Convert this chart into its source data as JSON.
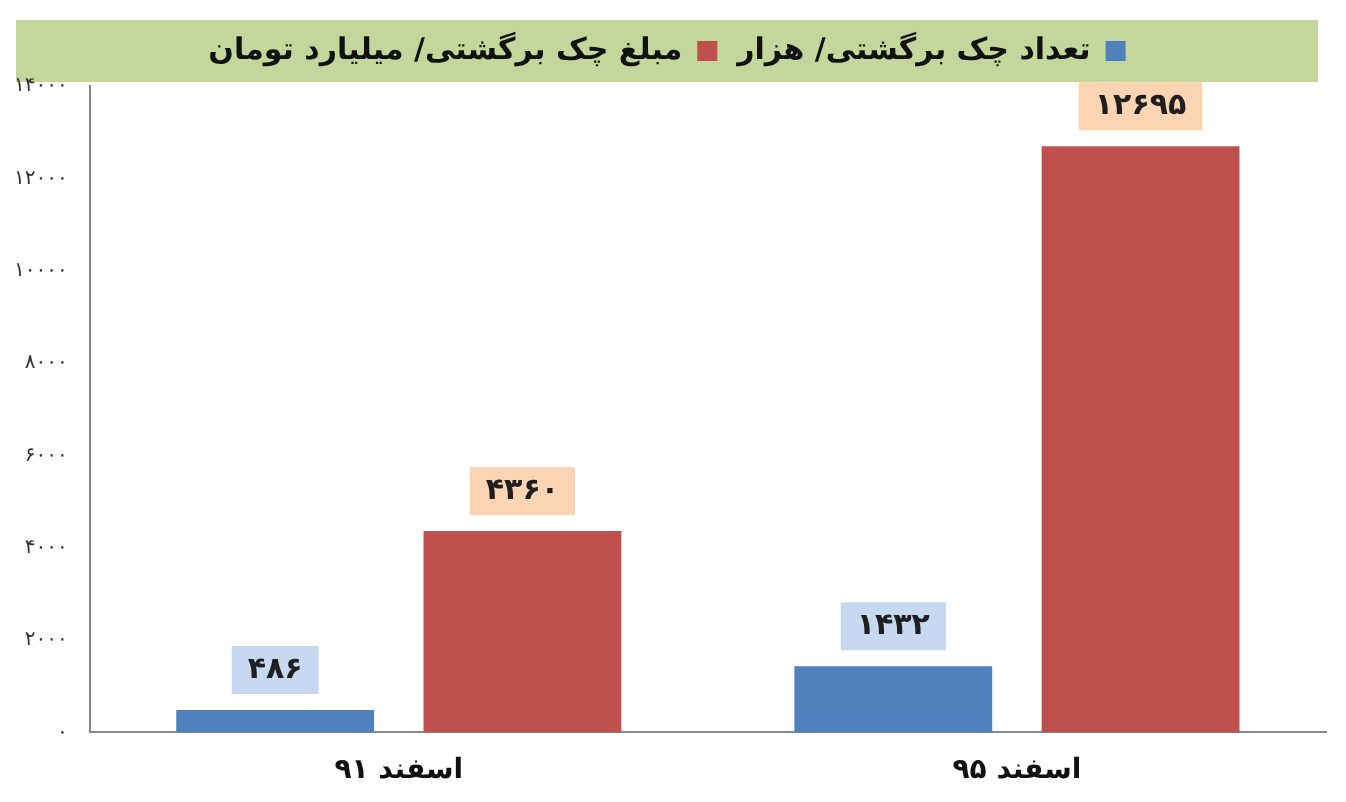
{
  "chart_data": {
    "type": "bar",
    "categories": [
      "اسفند ۹۱",
      "اسفند ۹۵"
    ],
    "series": [
      {
        "name": "تعداد چک برگشتی/ هزار",
        "color": "#4f81bd",
        "values": [
          486,
          1432
        ],
        "value_labels": [
          "۴۸۶",
          "۱۴۳۲"
        ]
      },
      {
        "name": "مبلغ چک برگشتی/ میلیارد تومان",
        "color": "#c0504d",
        "values": [
          4360,
          12695
        ],
        "value_labels": [
          "۴۳۶۰",
          "۱۲۶۹۵"
        ]
      }
    ],
    "ylim": [
      0,
      14000
    ],
    "yticks": [
      {
        "value": 0,
        "label": "۰"
      },
      {
        "value": 2000,
        "label": "۲۰۰۰"
      },
      {
        "value": 4000,
        "label": "۴۰۰۰"
      },
      {
        "value": 6000,
        "label": "۶۰۰۰"
      },
      {
        "value": 8000,
        "label": "۸۰۰۰"
      },
      {
        "value": 10000,
        "label": "۱۰۰۰۰"
      },
      {
        "value": 12000,
        "label": "۱۲۰۰۰"
      },
      {
        "value": 14000,
        "label": "۱۴۰۰۰"
      }
    ],
    "grid": false,
    "legend": "top"
  }
}
